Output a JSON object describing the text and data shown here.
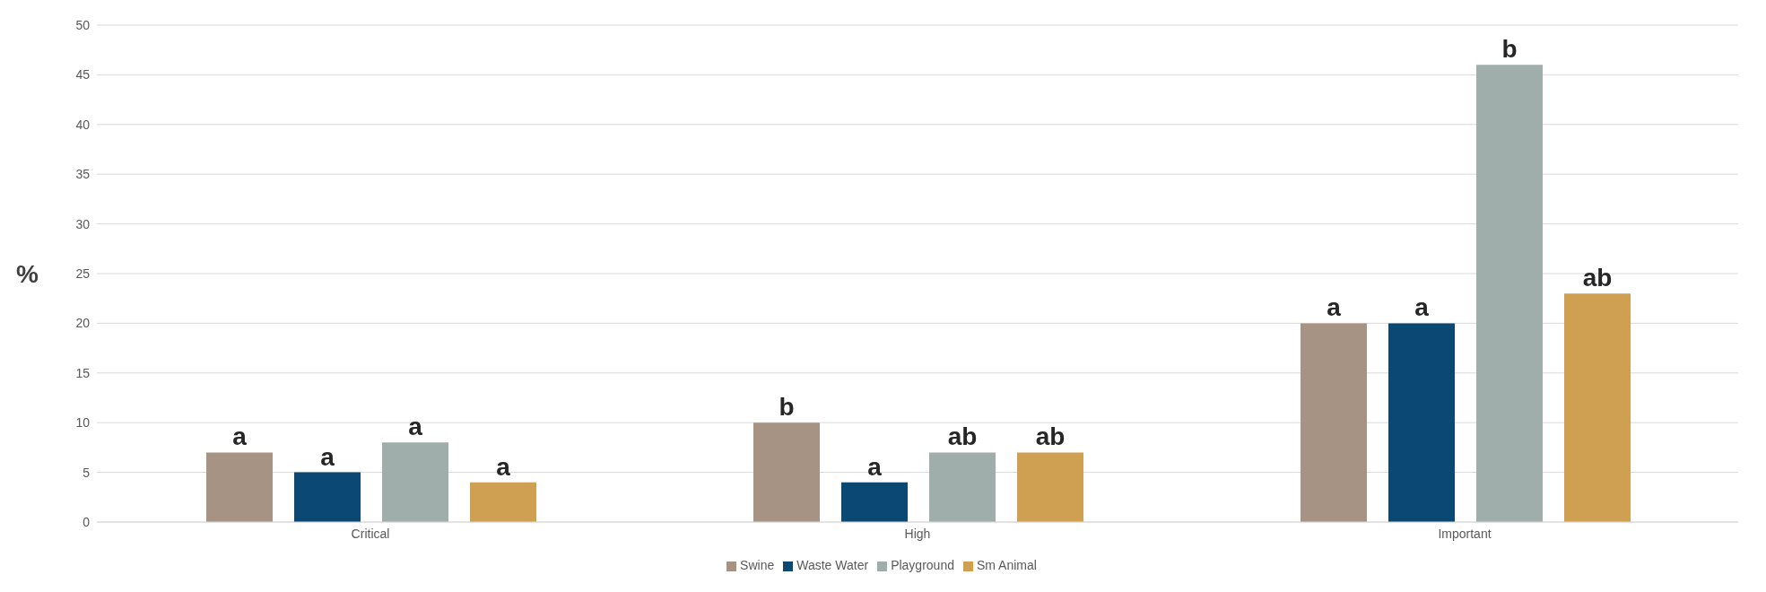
{
  "chart_data": {
    "type": "bar",
    "ylabel": "%",
    "categories": [
      "Critical",
      "High",
      "Important"
    ],
    "series": [
      {
        "name": "Swine",
        "color": "#a69383",
        "values": [
          7,
          10,
          20
        ],
        "value_labels": [
          "a",
          "b",
          "a"
        ]
      },
      {
        "name": "Waste Water",
        "color": "#0b4873",
        "values": [
          5,
          4,
          20
        ],
        "value_labels": [
          "a",
          "a",
          "a"
        ]
      },
      {
        "name": "Playground",
        "color": "#a0aeab",
        "values": [
          8,
          7,
          46
        ],
        "value_labels": [
          "a",
          "ab",
          "b"
        ]
      },
      {
        "name": "Sm Animal",
        "color": "#cfa052",
        "values": [
          4,
          7,
          23
        ],
        "value_labels": [
          "a",
          "ab",
          "ab"
        ]
      }
    ],
    "ylim": [
      0,
      50
    ],
    "yticks": [
      0,
      5,
      10,
      15,
      20,
      25,
      30,
      35,
      40,
      45,
      50
    ],
    "grid": "y",
    "legend": "bottom"
  }
}
